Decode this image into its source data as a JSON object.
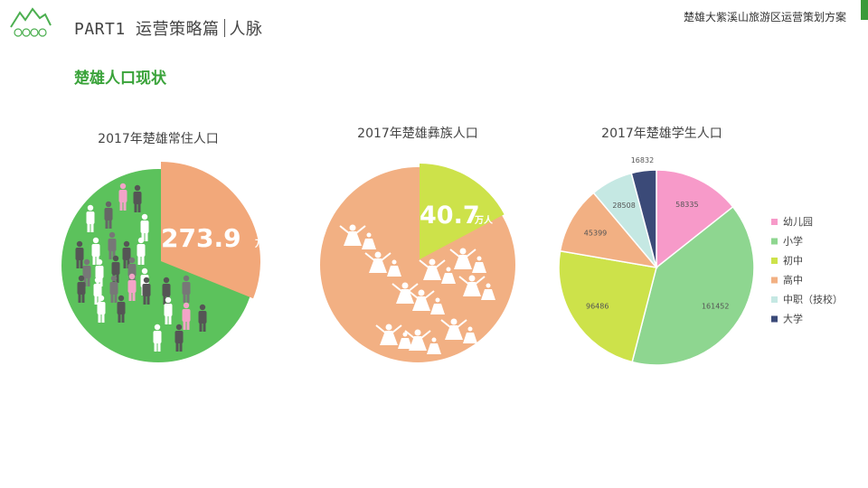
{
  "header": {
    "part": "PART1",
    "section": "运营策略篇",
    "subsection": "人脉",
    "doc_title": "楚雄大紫溪山旅游区运营策划方案"
  },
  "section_title": "楚雄人口现状",
  "charts": [
    {
      "title": "2017年楚雄常住人口",
      "value_label": "273.9",
      "unit_label": "万人",
      "colors": {
        "base": "#5cc25c",
        "highlight": "#f2a87a"
      }
    },
    {
      "title": "2017年楚雄彝族人口",
      "value_label": "40.7",
      "unit_label": "万人",
      "colors": {
        "base": "#f2b083",
        "highlight": "#cde24a"
      }
    }
  ],
  "chart_data": {
    "type": "pie",
    "title": "2017年楚雄学生人口",
    "categories": [
      "幼儿园",
      "小学",
      "初中",
      "高中",
      "中职（技校）",
      "大学"
    ],
    "values": [
      58335,
      161452,
      96486,
      45399,
      28508,
      16832
    ],
    "colors": [
      "#f79ac9",
      "#8ed690",
      "#cde24a",
      "#f2b083",
      "#c5e8e3",
      "#3b4a78"
    ],
    "legend": "right"
  }
}
